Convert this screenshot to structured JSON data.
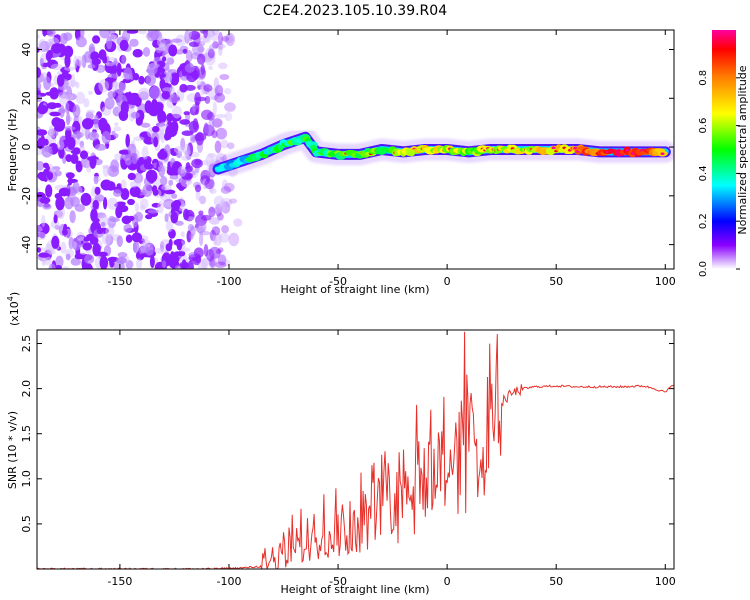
{
  "title": "C2E4.2023.105.10.39.R04",
  "chart_data": [
    {
      "type": "heatmap",
      "xlabel": "Height of straight line (km)",
      "ylabel": "Frequency (Hz)",
      "xlim": [
        -188,
        104
      ],
      "ylim": [
        -50,
        48
      ],
      "xticks": [
        -150,
        -100,
        -50,
        0,
        50,
        100
      ],
      "xtick_labels": [
        "-150",
        "-100",
        "-50",
        "0",
        "50",
        "100"
      ],
      "yticks": [
        -40,
        -20,
        0,
        20,
        40
      ],
      "ytick_labels": [
        "-40",
        "-20",
        "0",
        "20",
        "40"
      ],
      "colorbar": {
        "label": "Normalized spectral amplitude",
        "range": [
          0,
          1
        ],
        "ticks": [
          0.0,
          0.2,
          0.4,
          0.6,
          0.8
        ],
        "tick_labels": [
          "0.0",
          "0.2",
          "0.4",
          "0.6",
          "0.8"
        ],
        "colors": [
          "#ffffff",
          "#8a00ff",
          "#0000ff",
          "#00ffff",
          "#00ff00",
          "#ffff00",
          "#ff8000",
          "#ff0000",
          "#ff00a0"
        ]
      },
      "noise_region_x": [
        -188,
        -95
      ],
      "ridge": [
        {
          "x": -105,
          "f": -9,
          "a": 0.3
        },
        {
          "x": -95,
          "f": -6,
          "a": 0.35
        },
        {
          "x": -85,
          "f": -3,
          "a": 0.4
        },
        {
          "x": -75,
          "f": 1,
          "a": 0.45
        },
        {
          "x": -65,
          "f": 4,
          "a": 0.45
        },
        {
          "x": -60,
          "f": -2,
          "a": 0.45
        },
        {
          "x": -50,
          "f": -3,
          "a": 0.5
        },
        {
          "x": -40,
          "f": -3,
          "a": 0.55
        },
        {
          "x": -30,
          "f": -1,
          "a": 0.5
        },
        {
          "x": -20,
          "f": -2,
          "a": 0.6
        },
        {
          "x": -10,
          "f": -1,
          "a": 0.65
        },
        {
          "x": 0,
          "f": -1,
          "a": 0.6
        },
        {
          "x": 10,
          "f": -2,
          "a": 0.55
        },
        {
          "x": 20,
          "f": -1,
          "a": 0.6
        },
        {
          "x": 30,
          "f": -1,
          "a": 0.6
        },
        {
          "x": 40,
          "f": -1,
          "a": 0.65
        },
        {
          "x": 50,
          "f": -1,
          "a": 0.7
        },
        {
          "x": 60,
          "f": -1,
          "a": 0.75
        },
        {
          "x": 70,
          "f": -2,
          "a": 0.85
        },
        {
          "x": 80,
          "f": -2,
          "a": 0.95
        },
        {
          "x": 90,
          "f": -2,
          "a": 0.9
        },
        {
          "x": 100,
          "f": -2,
          "a": 0.6
        }
      ]
    },
    {
      "type": "line",
      "xlabel": "Height of straight line (km)",
      "ylabel": "SNR (10 * v/v)",
      "y_multiplier": "(x10",
      "y_multiplier_exp": "4",
      "y_multiplier_close": ")",
      "xlim": [
        -188,
        104
      ],
      "ylim": [
        0,
        2.65
      ],
      "xticks": [
        -150,
        -100,
        -50,
        0,
        50,
        100
      ],
      "xtick_labels": [
        "-150",
        "-100",
        "-50",
        "0",
        "50",
        "100"
      ],
      "yticks": [
        0.5,
        1.0,
        1.5,
        2.0,
        2.5
      ],
      "ytick_labels": [
        "0.5",
        "1.0",
        "1.5",
        "2.0",
        "2.5"
      ],
      "color": "#e8302a",
      "series": [
        {
          "x": [
            -188,
            -160,
            -130,
            -110,
            -95,
            -85,
            -80,
            -75,
            -70,
            -65,
            -60,
            -55,
            -50,
            -45,
            -40,
            -35,
            -30,
            -25,
            -20,
            -15,
            -12,
            -10,
            -5,
            0,
            5,
            8,
            10,
            15,
            20,
            25,
            30,
            35,
            40,
            50,
            60,
            70,
            80,
            90,
            95,
            100,
            104
          ],
          "y": [
            0.0,
            0.0,
            0.0,
            0.0,
            0.01,
            0.03,
            0.08,
            0.18,
            0.28,
            0.32,
            0.38,
            0.42,
            0.45,
            0.5,
            0.55,
            0.6,
            0.7,
            0.8,
            1.0,
            1.1,
            1.2,
            1.0,
            1.15,
            1.2,
            1.3,
            1.35,
            1.4,
            1.55,
            1.7,
            1.85,
            1.95,
            2.0,
            2.02,
            2.03,
            2.02,
            2.02,
            2.02,
            2.03,
            2.0,
            1.96,
            2.05
          ],
          "spikes": [
            {
              "x": 8,
              "y": 2.63
            },
            {
              "x": -14,
              "y": 1.82
            },
            {
              "x": 8,
              "y": 0.62
            }
          ]
        }
      ]
    }
  ]
}
